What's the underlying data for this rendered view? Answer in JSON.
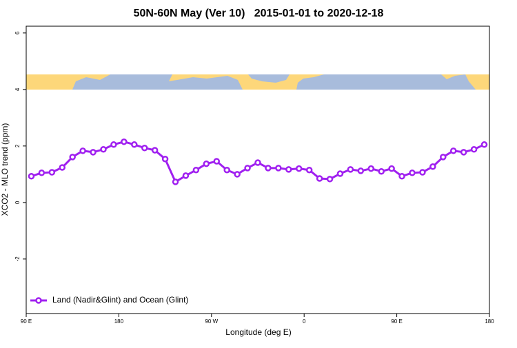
{
  "chart_data": {
    "type": "line",
    "title": "50N-60N May (Ver 10)   2015-01-01 to 2020-12-18",
    "xlabel": "Longitude (deg E)",
    "ylabel": "XCO2 - MLO trend (ppm)",
    "x": [
      95,
      105,
      115,
      125,
      135,
      145,
      155,
      165,
      175,
      185,
      195,
      205,
      215,
      225,
      235,
      245,
      255,
      265,
      275,
      285,
      295,
      305,
      315,
      325,
      335,
      345,
      355,
      365,
      375,
      385,
      395,
      405,
      415,
      425,
      435,
      445,
      455,
      465,
      475,
      485,
      495,
      505,
      515,
      525,
      535
    ],
    "series": [
      {
        "name": "Land (Nadir&Glint) and Ocean (Glint)",
        "color": "#a020f0",
        "values": [
          0.93,
          1.05,
          1.07,
          1.24,
          1.61,
          1.83,
          1.78,
          1.88,
          2.05,
          2.15,
          2.05,
          1.93,
          1.85,
          1.54,
          0.73,
          0.95,
          1.15,
          1.37,
          1.46,
          1.15,
          1.0,
          1.22,
          1.41,
          1.22,
          1.22,
          1.17,
          1.2,
          1.15,
          0.85,
          0.83,
          1.02,
          1.17,
          1.12,
          1.2,
          1.1,
          1.2,
          0.93,
          1.05,
          1.07,
          1.27,
          1.61,
          1.83,
          1.78,
          1.88,
          2.05
        ]
      }
    ],
    "xlim": [
      90,
      540
    ],
    "xticks": [
      {
        "value": 90,
        "label": "90 E"
      },
      {
        "value": 180,
        "label": "180"
      },
      {
        "value": 270,
        "label": "90 W"
      },
      {
        "value": 360,
        "label": "0"
      },
      {
        "value": 450,
        "label": "90 E"
      },
      {
        "value": 540,
        "label": "180"
      }
    ],
    "ylim": [
      -3.93,
      6.24
    ],
    "yticks": [
      -2,
      0,
      2,
      4,
      6
    ],
    "legend": "bottom-left"
  }
}
